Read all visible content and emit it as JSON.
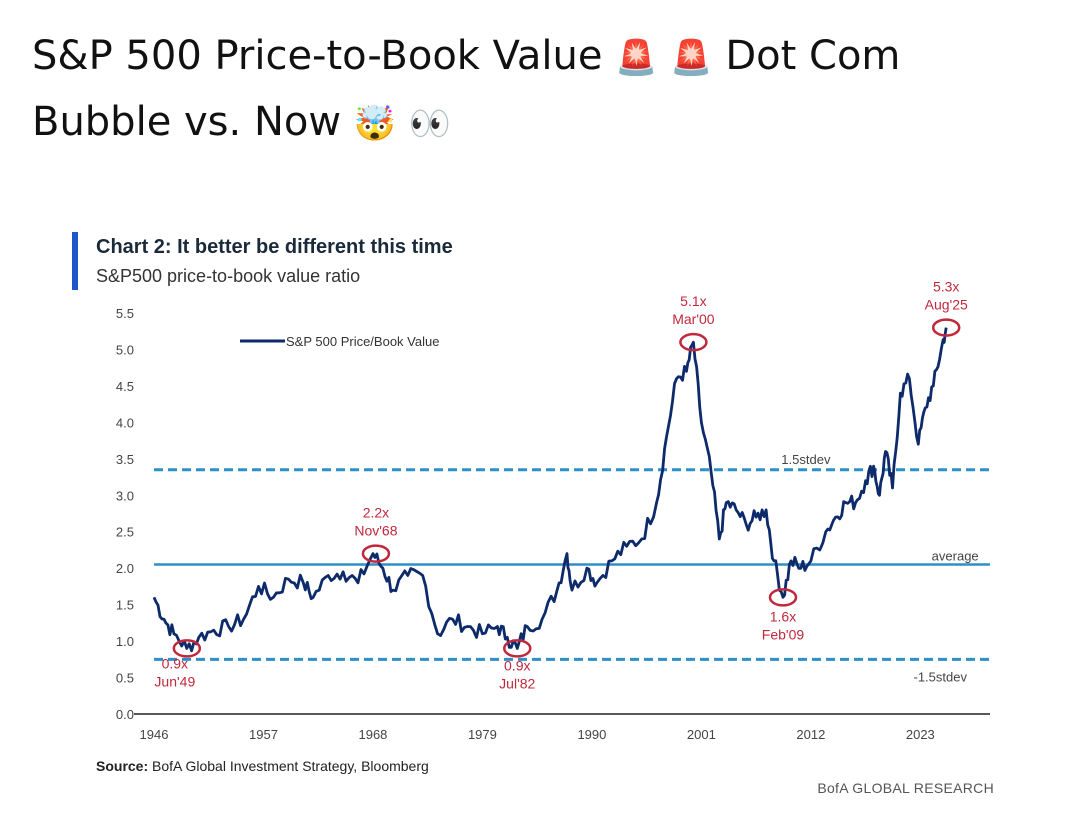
{
  "post": {
    "title_part1": "S&P 500 Price-to-Book Value",
    "emoji_1": "🚨",
    "emoji_2": "🚨",
    "title_part2": "Dot Com Bubble vs. Now",
    "emoji_3": "🤯",
    "emoji_4": "👀"
  },
  "chart_data": {
    "type": "line",
    "title": "Chart 2: It better be different this time",
    "subtitle": "S&P500 price-to-book value ratio",
    "legend": {
      "label": "S&P 500 Price/Book Value",
      "placement": "top-left"
    },
    "series": [
      {
        "name": "S&P 500 Price/Book Value",
        "color": "#0d2a6b",
        "points": [
          [
            1946.0,
            1.6
          ],
          [
            1947.0,
            1.3
          ],
          [
            1948.0,
            1.1
          ],
          [
            1949.3,
            0.9
          ],
          [
            1950.5,
            1.05
          ],
          [
            1952.0,
            1.15
          ],
          [
            1953.5,
            1.2
          ],
          [
            1955.0,
            1.3
          ],
          [
            1956.5,
            1.75
          ],
          [
            1958.0,
            1.6
          ],
          [
            1959.5,
            1.85
          ],
          [
            1961.0,
            1.8
          ],
          [
            1962.0,
            1.6
          ],
          [
            1963.5,
            1.9
          ],
          [
            1965.0,
            1.95
          ],
          [
            1966.5,
            1.8
          ],
          [
            1968.0,
            2.2
          ],
          [
            1969.0,
            2.0
          ],
          [
            1970.0,
            1.7
          ],
          [
            1971.5,
            1.9
          ],
          [
            1973.0,
            1.9
          ],
          [
            1974.5,
            1.1
          ],
          [
            1976.0,
            1.3
          ],
          [
            1977.5,
            1.2
          ],
          [
            1979.0,
            1.1
          ],
          [
            1980.5,
            1.2
          ],
          [
            1981.5,
            1.05
          ],
          [
            1982.5,
            0.9
          ],
          [
            1983.5,
            1.2
          ],
          [
            1985.0,
            1.3
          ],
          [
            1986.5,
            1.7
          ],
          [
            1987.5,
            2.2
          ],
          [
            1988.0,
            1.7
          ],
          [
            1989.5,
            2.0
          ],
          [
            1990.5,
            1.8
          ],
          [
            1992.0,
            2.1
          ],
          [
            1993.5,
            2.3
          ],
          [
            1995.0,
            2.4
          ],
          [
            1996.5,
            2.9
          ],
          [
            1997.5,
            3.8
          ],
          [
            1998.5,
            4.6
          ],
          [
            1999.5,
            4.7
          ],
          [
            2000.2,
            5.1
          ],
          [
            2001.0,
            4.0
          ],
          [
            2002.0,
            3.3
          ],
          [
            2002.8,
            2.4
          ],
          [
            2003.5,
            2.9
          ],
          [
            2004.5,
            2.8
          ],
          [
            2005.5,
            2.6
          ],
          [
            2006.5,
            2.7
          ],
          [
            2007.5,
            2.8
          ],
          [
            2008.3,
            2.1
          ],
          [
            2009.2,
            1.6
          ],
          [
            2010.0,
            2.1
          ],
          [
            2011.0,
            2.0
          ],
          [
            2012.0,
            2.1
          ],
          [
            2013.5,
            2.5
          ],
          [
            2014.5,
            2.7
          ],
          [
            2015.5,
            2.9
          ],
          [
            2016.5,
            2.9
          ],
          [
            2017.5,
            3.2
          ],
          [
            2018.3,
            3.4
          ],
          [
            2018.9,
            3.0
          ],
          [
            2019.5,
            3.6
          ],
          [
            2020.2,
            3.1
          ],
          [
            2021.0,
            4.4
          ],
          [
            2021.9,
            4.6
          ],
          [
            2022.8,
            3.7
          ],
          [
            2023.5,
            4.2
          ],
          [
            2024.3,
            4.5
          ],
          [
            2025.1,
            5.0
          ],
          [
            2025.6,
            5.3
          ]
        ]
      }
    ],
    "reference_lines": [
      {
        "label": "1.5stdev",
        "value": 3.35,
        "style": "dashed",
        "color": "#2e8fc9"
      },
      {
        "label": "average",
        "value": 2.05,
        "style": "solid",
        "color": "#2e8fc9"
      },
      {
        "label": "-1.5stdev",
        "value": 0.75,
        "style": "dashed",
        "color": "#2e8fc9"
      }
    ],
    "annotations": [
      {
        "value_label": "0.9x",
        "date_label": "Jun'49",
        "x": 1949.3,
        "y": 0.9,
        "label_side": "below"
      },
      {
        "value_label": "2.2x",
        "date_label": "Nov'68",
        "x": 1968.3,
        "y": 2.2,
        "label_side": "above"
      },
      {
        "value_label": "0.9x",
        "date_label": "Jul'82",
        "x": 1982.5,
        "y": 0.9,
        "label_side": "below"
      },
      {
        "value_label": "5.1x",
        "date_label": "Mar'00",
        "x": 2000.2,
        "y": 5.1,
        "label_side": "above"
      },
      {
        "value_label": "1.6x",
        "date_label": "Feb'09",
        "x": 2009.2,
        "y": 1.6,
        "label_side": "below"
      },
      {
        "value_label": "5.3x",
        "date_label": "Aug'25",
        "x": 2025.6,
        "y": 5.3,
        "label_side": "above"
      }
    ],
    "x_ticks": [
      "1946",
      "1957",
      "1968",
      "1979",
      "1990",
      "2001",
      "2012",
      "2023"
    ],
    "y_ticks": [
      "0.0",
      "0.5",
      "1.0",
      "1.5",
      "2.0",
      "2.5",
      "3.0",
      "3.5",
      "4.0",
      "4.5",
      "5.0",
      "5.5"
    ],
    "xlim": [
      1946,
      2030
    ],
    "ylim": [
      0,
      5.5
    ],
    "annotation_color": "#c0283c",
    "grid": false,
    "source_prefix": "Source:",
    "source_text": "BofA Global Investment Strategy, Bloomberg",
    "brand": "BofA GLOBAL RESEARCH"
  }
}
